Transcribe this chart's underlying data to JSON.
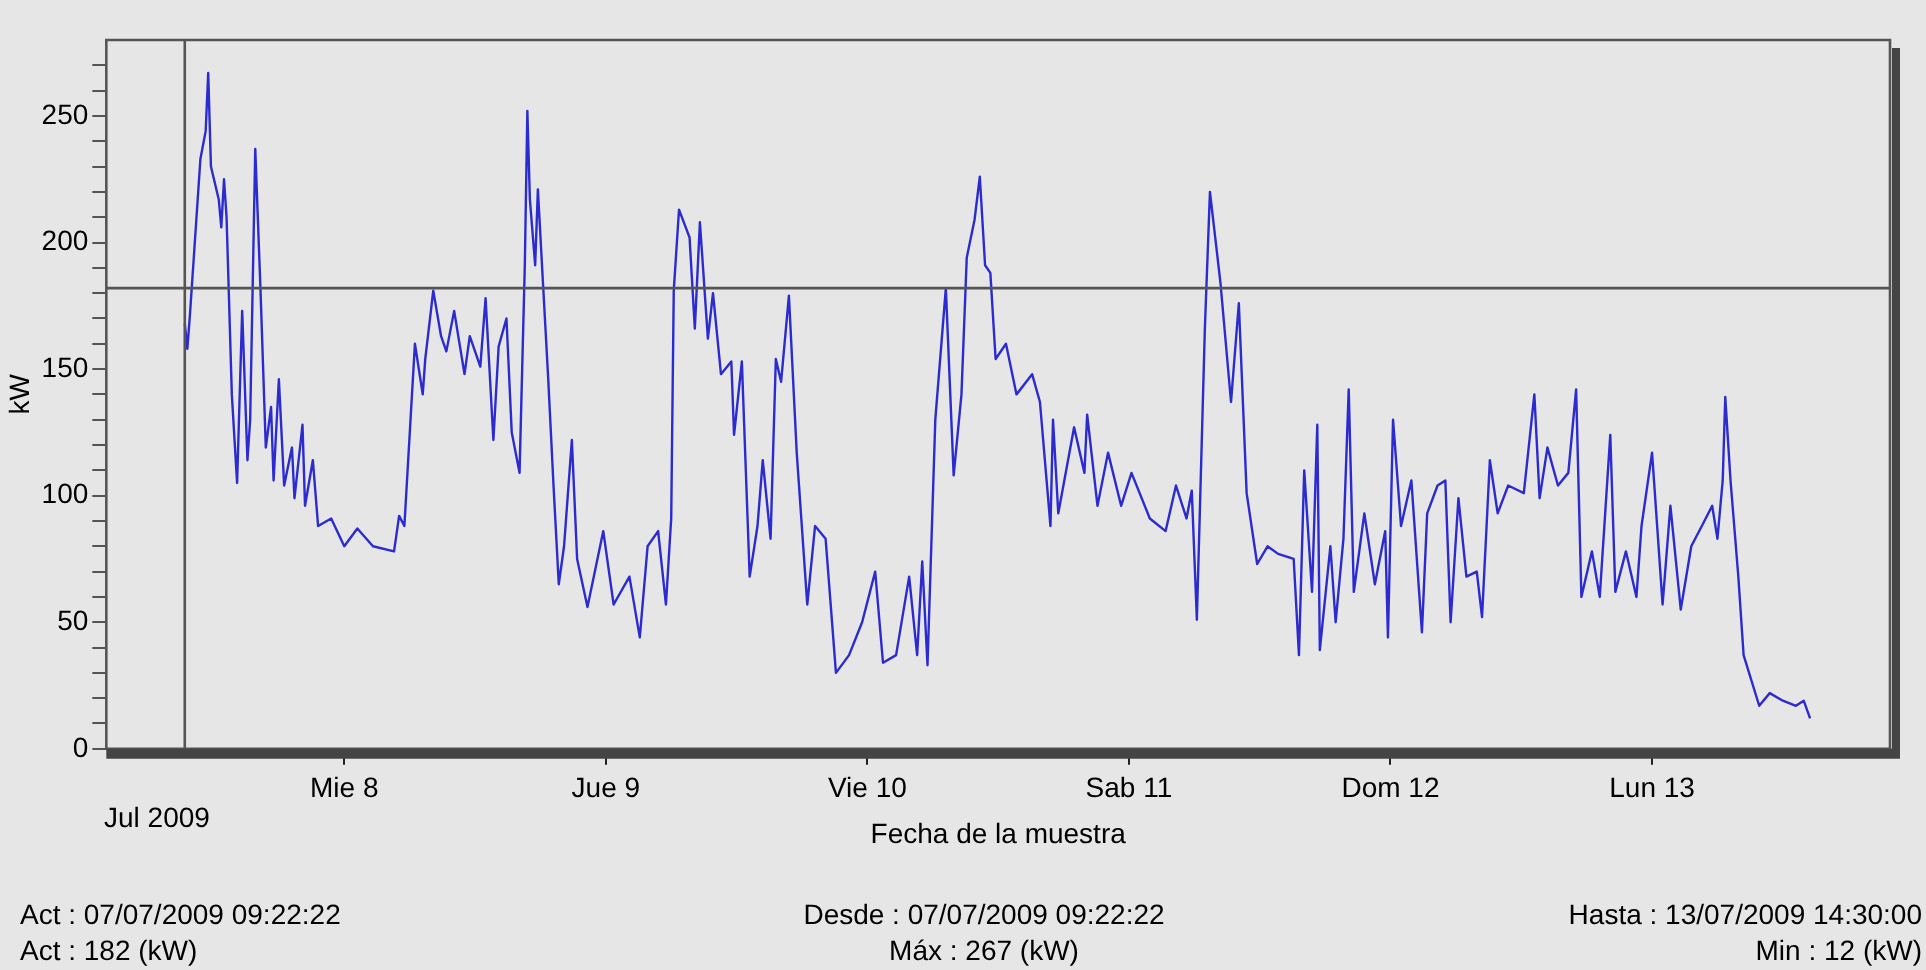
{
  "chart_data": {
    "type": "line",
    "xlabel": "Fecha de la muestra",
    "ylabel": "kW",
    "x": [
      "2009-07-07T09:22",
      "2009-07-07T09:36",
      "2009-07-07T09:50",
      "2009-07-07T10:48",
      "2009-07-07T11:17",
      "2009-07-07T11:31",
      "2009-07-07T11:46",
      "2009-07-07T12:29",
      "2009-07-07T12:43",
      "2009-07-07T12:58",
      "2009-07-07T13:12",
      "2009-07-07T13:41",
      "2009-07-07T14:10",
      "2009-07-07T14:38",
      "2009-07-07T15:07",
      "2009-07-07T15:22",
      "2009-07-07T15:50",
      "2009-07-07T16:19",
      "2009-07-07T16:48",
      "2009-07-07T17:17",
      "2009-07-07T17:31",
      "2009-07-07T18:00",
      "2009-07-07T18:29",
      "2009-07-07T19:12",
      "2009-07-07T19:26",
      "2009-07-07T20:10",
      "2009-07-07T20:24",
      "2009-07-07T21:07",
      "2009-07-07T21:36",
      "2009-07-07T22:48",
      "2009-07-08T00:00",
      "2009-07-08T01:12",
      "2009-07-08T02:38",
      "2009-07-08T04:34",
      "2009-07-08T05:02",
      "2009-07-08T05:31",
      "2009-07-08T06:29",
      "2009-07-08T07:12",
      "2009-07-08T07:26",
      "2009-07-08T08:10",
      "2009-07-08T08:53",
      "2009-07-08T09:22",
      "2009-07-08T10:05",
      "2009-07-08T11:02",
      "2009-07-08T11:31",
      "2009-07-08T12:29",
      "2009-07-08T12:58",
      "2009-07-08T13:41",
      "2009-07-08T14:10",
      "2009-07-08T14:53",
      "2009-07-08T15:22",
      "2009-07-08T16:05",
      "2009-07-08T16:34",
      "2009-07-08T16:48",
      "2009-07-08T17:02",
      "2009-07-08T17:31",
      "2009-07-08T17:46",
      "2009-07-08T18:14",
      "2009-07-08T18:43",
      "2009-07-08T19:12",
      "2009-07-08T19:41",
      "2009-07-08T20:10",
      "2009-07-08T20:53",
      "2009-07-08T21:22",
      "2009-07-08T22:19",
      "2009-07-08T23:46",
      "2009-07-09T00:43",
      "2009-07-09T02:10",
      "2009-07-09T03:07",
      "2009-07-09T03:50",
      "2009-07-09T04:48",
      "2009-07-09T05:31",
      "2009-07-09T06:00",
      "2009-07-09T06:14",
      "2009-07-09T06:43",
      "2009-07-09T07:41",
      "2009-07-09T08:10",
      "2009-07-09T08:38",
      "2009-07-09T09:22",
      "2009-07-09T09:50",
      "2009-07-09T10:34",
      "2009-07-09T11:31",
      "2009-07-09T11:46",
      "2009-07-09T12:29",
      "2009-07-09T13:12",
      "2009-07-09T13:55",
      "2009-07-09T14:24",
      "2009-07-09T15:07",
      "2009-07-09T15:36",
      "2009-07-09T16:05",
      "2009-07-09T16:48",
      "2009-07-09T17:31",
      "2009-07-09T18:29",
      "2009-07-09T19:12",
      "2009-07-09T20:10",
      "2009-07-09T21:07",
      "2009-07-09T22:19",
      "2009-07-09T23:31",
      "2009-07-10T00:43",
      "2009-07-10T01:26",
      "2009-07-10T02:38",
      "2009-07-10T03:50",
      "2009-07-10T04:34",
      "2009-07-10T05:02",
      "2009-07-10T05:31",
      "2009-07-10T06:14",
      "2009-07-10T07:12",
      "2009-07-10T07:55",
      "2009-07-10T08:38",
      "2009-07-10T09:07",
      "2009-07-10T09:50",
      "2009-07-10T10:19",
      "2009-07-10T10:48",
      "2009-07-10T11:17",
      "2009-07-10T11:46",
      "2009-07-10T12:43",
      "2009-07-10T13:41",
      "2009-07-10T15:07",
      "2009-07-10T15:50",
      "2009-07-10T16:48",
      "2009-07-10T17:02",
      "2009-07-10T17:31",
      "2009-07-10T18:58",
      "2009-07-10T19:55",
      "2009-07-10T20:10",
      "2009-07-10T21:07",
      "2009-07-10T22:05",
      "2009-07-10T23:17",
      "2009-07-11T00:14",
      "2009-07-11T01:55",
      "2009-07-11T03:22",
      "2009-07-11T04:19",
      "2009-07-11T05:17",
      "2009-07-11T05:46",
      "2009-07-11T06:14",
      "2009-07-11T06:58",
      "2009-07-11T07:26",
      "2009-07-11T08:24",
      "2009-07-11T09:22",
      "2009-07-11T10:05",
      "2009-07-11T10:48",
      "2009-07-11T11:46",
      "2009-07-11T12:43",
      "2009-07-11T13:41",
      "2009-07-11T15:07",
      "2009-07-11T15:36",
      "2009-07-11T16:05",
      "2009-07-11T16:48",
      "2009-07-11T17:17",
      "2009-07-11T17:31",
      "2009-07-11T18:29",
      "2009-07-11T18:58",
      "2009-07-11T19:41",
      "2009-07-11T20:10",
      "2009-07-11T20:38",
      "2009-07-11T21:36",
      "2009-07-11T22:34",
      "2009-07-11T23:31",
      "2009-07-11T23:46",
      "2009-07-12T00:14",
      "2009-07-12T00:58",
      "2009-07-12T01:55",
      "2009-07-12T02:53",
      "2009-07-12T03:22",
      "2009-07-12T04:19",
      "2009-07-12T05:02",
      "2009-07-12T05:31",
      "2009-07-12T06:14",
      "2009-07-12T06:58",
      "2009-07-12T07:55",
      "2009-07-12T08:24",
      "2009-07-12T09:07",
      "2009-07-12T09:50",
      "2009-07-12T10:48",
      "2009-07-12T12:14",
      "2009-07-12T13:12",
      "2009-07-12T13:41",
      "2009-07-12T14:24",
      "2009-07-12T15:22",
      "2009-07-12T16:19",
      "2009-07-12T17:02",
      "2009-07-12T17:31",
      "2009-07-12T18:29",
      "2009-07-12T19:12",
      "2009-07-12T20:10",
      "2009-07-12T20:38",
      "2009-07-12T21:36",
      "2009-07-12T22:34",
      "2009-07-12T23:02",
      "2009-07-13T00:00",
      "2009-07-13T00:58",
      "2009-07-13T01:41",
      "2009-07-13T02:38",
      "2009-07-13T03:36",
      "2009-07-13T04:34",
      "2009-07-13T05:31",
      "2009-07-13T06:00",
      "2009-07-13T06:29",
      "2009-07-13T06:43",
      "2009-07-13T07:12",
      "2009-07-13T07:55",
      "2009-07-13T08:24",
      "2009-07-13T09:50",
      "2009-07-13T10:48",
      "2009-07-13T12:00",
      "2009-07-13T13:12",
      "2009-07-13T13:55",
      "2009-07-13T14:30"
    ],
    "series": [
      {
        "color": "#2b2bd0",
        "values": [
          168,
          158,
          171,
          233,
          244,
          267,
          230,
          217,
          206,
          225,
          210,
          140,
          105,
          173,
          114,
          130,
          237,
          181,
          119,
          135,
          106,
          146,
          104,
          119,
          99,
          128,
          96,
          114,
          88,
          91,
          80,
          87,
          80,
          78,
          92,
          88,
          160,
          140,
          154,
          181,
          163,
          157,
          173,
          148,
          163,
          151,
          178,
          122,
          159,
          170,
          125,
          109,
          191,
          252,
          217,
          191,
          221,
          184,
          146,
          104,
          65,
          80,
          122,
          75,
          56,
          86,
          57,
          68,
          44,
          80,
          86,
          57,
          91,
          181,
          213,
          202,
          166,
          208,
          162,
          180,
          148,
          153,
          124,
          153,
          68,
          88,
          114,
          83,
          154,
          145,
          179,
          117,
          57,
          88,
          83,
          30,
          37,
          50,
          70,
          34,
          37,
          68,
          37,
          74,
          33,
          130,
          182,
          108,
          140,
          194,
          209,
          226,
          191,
          188,
          154,
          160,
          140,
          148,
          137,
          88,
          130,
          93,
          127,
          109,
          132,
          96,
          117,
          96,
          109,
          91,
          86,
          104,
          91,
          102,
          51,
          166,
          220,
          184,
          137,
          176,
          101,
          73,
          80,
          77,
          75,
          37,
          110,
          62,
          128,
          39,
          80,
          50,
          83,
          142,
          62,
          93,
          65,
          86,
          44,
          130,
          88,
          106,
          46,
          93,
          104,
          106,
          50,
          99,
          68,
          70,
          52,
          114,
          93,
          104,
          101,
          140,
          99,
          119,
          104,
          109,
          142,
          60,
          78,
          60,
          124,
          62,
          78,
          60,
          88,
          117,
          57,
          96,
          55,
          80,
          88,
          96,
          83,
          106,
          139,
          106,
          68,
          37,
          17,
          22,
          19,
          17,
          19,
          12
        ]
      }
    ],
    "xlim": [
      "2009-07-07T02:10",
      "2009-07-13T21:50"
    ],
    "xticks": [
      {
        "value": "2009-07-08",
        "label": "Mie 8"
      },
      {
        "value": "2009-07-09",
        "label": "Jue 9"
      },
      {
        "value": "2009-07-10",
        "label": "Vie 10"
      },
      {
        "value": "2009-07-11",
        "label": "Sab 11"
      },
      {
        "value": "2009-07-12",
        "label": "Dom 12"
      },
      {
        "value": "2009-07-13",
        "label": "Lun 13"
      }
    ],
    "ylim": [
      0,
      280
    ],
    "yticks": [
      0,
      {
        "value": 10,
        "label": null
      },
      {
        "value": 20,
        "label": null
      },
      {
        "value": 30,
        "label": null
      },
      {
        "value": 40,
        "label": null
      },
      50,
      {
        "value": 60,
        "label": null
      },
      {
        "value": 70,
        "label": null
      },
      {
        "value": 80,
        "label": null
      },
      {
        "value": 90,
        "label": null
      },
      100,
      {
        "value": 110,
        "label": null
      },
      {
        "value": 120,
        "label": null
      },
      {
        "value": 130,
        "label": null
      },
      {
        "value": 140,
        "label": null
      },
      150,
      {
        "value": 160,
        "label": null
      },
      {
        "value": 170,
        "label": null
      },
      {
        "value": 180,
        "label": null
      },
      {
        "value": 190,
        "label": null
      },
      200,
      {
        "value": 210,
        "label": null
      },
      {
        "value": 220,
        "label": null
      },
      {
        "value": 230,
        "label": null
      },
      {
        "value": 240,
        "label": null
      },
      250,
      {
        "value": 260,
        "label": null
      },
      {
        "value": 270,
        "label": null
      }
    ],
    "ref_lines": [
      {
        "axis": "x",
        "value": "2009-07-07T09:22",
        "color": "#555555"
      },
      {
        "axis": "y",
        "value": 182,
        "color": "#555555"
      }
    ],
    "annotations": [
      "Jul 2009",
      "Act : 07/07/2009 09:22:22",
      "Desde : 07/07/2009 09:22:22",
      "Hasta : 13/07/2009 14:30:00",
      "Act : 182 (kW)",
      "Máx : 267 (kW)",
      "Min : 12 (kW)"
    ]
  }
}
